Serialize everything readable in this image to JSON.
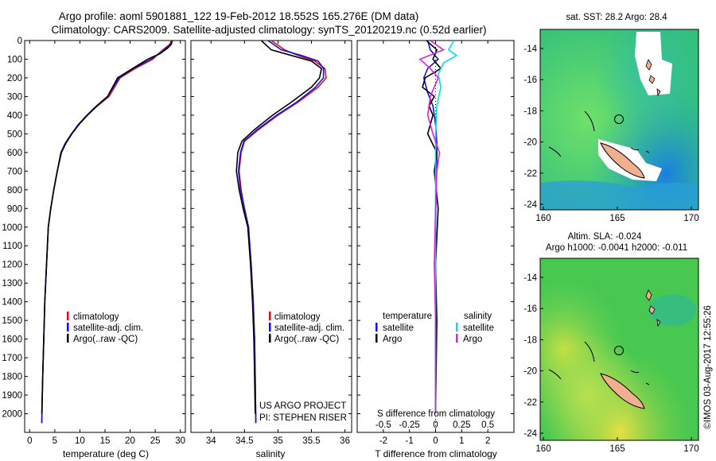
{
  "title": {
    "line1": "Argo profile: aoml 5901881_122 19-Feb-2012 18.552S 165.276E (DM data)",
    "line2": "Climatology: CARS2009. Satellite-adjusted climatology: synTS_20120219.nc (0.52d earlier)"
  },
  "colors": {
    "climatology": "#e01010",
    "satellite": "#1010e0",
    "argo": "#000000",
    "cyan": "#00e0e0",
    "magenta": "#e020e0"
  },
  "credits": {
    "project": "US ARGO PROJECT",
    "pi": "PI: STEPHEN RISER",
    "imos": "©IMOS 03-Aug-2017 12:55:26"
  },
  "legend1": {
    "climatology": "climatology",
    "satellite": "satellite-adj. clim.",
    "argo": "Argo(..raw -QC)"
  },
  "legend2": {
    "climatology": "climatology",
    "satellite": "satellite-adj. clim.",
    "argo": "Argo(..raw -QC)"
  },
  "legend3": {
    "t_head": "temperature",
    "s_head": "salinity",
    "t_sat": "satellite",
    "t_argo": "Argo",
    "s_sat": "satellite",
    "s_argo": "Argo"
  },
  "map_titles": {
    "sst": "sat. SST: 28.2 Argo: 28.4",
    "sla1": "Altim. SLA: -0.024",
    "sla2": "Argo h1000: -0.0041 h2000: -0.011"
  },
  "chart_data": [
    {
      "type": "line",
      "name": "temperature profile",
      "xlabel": "temperature (deg C)",
      "ylabel": "",
      "xlim": [
        -1,
        31
      ],
      "ylim": [
        2100,
        0
      ],
      "xticks": [
        0,
        5,
        10,
        15,
        20,
        25,
        30
      ],
      "yticks": [
        0,
        100,
        200,
        300,
        400,
        500,
        600,
        700,
        800,
        900,
        1000,
        1100,
        1200,
        1300,
        1400,
        1500,
        1600,
        1700,
        1800,
        1900,
        2000
      ],
      "series": [
        {
          "name": "climatology",
          "color": "#e01010",
          "x": [
            28.2,
            27.9,
            26.5,
            24.5,
            21,
            18,
            15.8,
            13.5,
            11.5,
            9.8,
            8.4,
            7.2,
            6.3,
            5.5,
            4.8,
            4.2,
            3.7,
            3.35,
            3,
            2.8,
            2.6,
            2.4
          ],
          "y": [
            0,
            20,
            50,
            100,
            150,
            200,
            300,
            350,
            400,
            450,
            500,
            550,
            600,
            700,
            800,
            900,
            1000,
            1200,
            1400,
            1600,
            1800,
            2050
          ]
        },
        {
          "name": "satellite-adj. clim.",
          "color": "#1010e0",
          "x": [
            28.4,
            28.1,
            26.8,
            24.2,
            20.6,
            17.8,
            15.5,
            13.3,
            11.4,
            9.7,
            8.3,
            7.1,
            6.2,
            5.5,
            4.8,
            4.2,
            3.7,
            3.35,
            3,
            2.8,
            2.6,
            2.4
          ],
          "y": [
            0,
            20,
            50,
            100,
            150,
            200,
            300,
            350,
            400,
            450,
            500,
            550,
            600,
            700,
            800,
            900,
            1000,
            1200,
            1400,
            1600,
            1800,
            2050
          ]
        },
        {
          "name": "Argo",
          "color": "#000000",
          "x": [
            28.4,
            28.2,
            27.5,
            26,
            23.5,
            20.5,
            17.5,
            15.5,
            13.4,
            11.5,
            9.8,
            8.4,
            7.2,
            6.3,
            5.5,
            4.8,
            4.2,
            3.7,
            3.35,
            3,
            2.8,
            2.6,
            2.4
          ],
          "y": [
            0,
            20,
            40,
            70,
            100,
            150,
            200,
            300,
            350,
            400,
            450,
            500,
            550,
            600,
            700,
            800,
            900,
            1000,
            1200,
            1400,
            1600,
            1800,
            2000
          ]
        }
      ]
    },
    {
      "type": "line",
      "name": "salinity profile",
      "xlabel": "salinity",
      "xlim": [
        33.7,
        36.1
      ],
      "ylim": [
        2100,
        0
      ],
      "xticks": [
        34,
        34.5,
        35,
        35.5,
        36
      ],
      "series": [
        {
          "name": "climatology",
          "color": "#e01010",
          "x": [
            34.9,
            35.1,
            35.3,
            35.55,
            35.7,
            35.72,
            35.6,
            35.3,
            35.0,
            34.7,
            34.5,
            34.45,
            34.42,
            34.45,
            34.5,
            34.56,
            34.6,
            34.63,
            34.65,
            34.66,
            34.67
          ],
          "y": [
            0,
            50,
            80,
            110,
            150,
            200,
            250,
            330,
            400,
            480,
            540,
            600,
            700,
            800,
            900,
            1000,
            1200,
            1400,
            1600,
            1800,
            2050
          ]
        },
        {
          "name": "satellite-adj. clim.",
          "color": "#1010e0",
          "x": [
            34.85,
            35.05,
            35.35,
            35.6,
            35.68,
            35.68,
            35.56,
            35.28,
            34.98,
            34.68,
            34.49,
            34.44,
            34.41,
            34.44,
            34.5,
            34.56,
            34.6,
            34.63,
            34.65,
            34.66,
            34.67
          ],
          "y": [
            0,
            50,
            80,
            110,
            150,
            200,
            250,
            330,
            400,
            480,
            540,
            600,
            700,
            800,
            900,
            1000,
            1200,
            1400,
            1600,
            1800,
            2050
          ]
        },
        {
          "name": "Argo",
          "color": "#000000",
          "x": [
            34.75,
            34.9,
            35.2,
            35.5,
            35.65,
            35.62,
            35.5,
            35.2,
            34.92,
            34.64,
            34.46,
            34.4,
            34.38,
            34.42,
            34.48,
            34.55,
            34.59,
            34.62,
            34.64,
            34.65,
            34.66
          ],
          "y": [
            0,
            50,
            80,
            110,
            150,
            200,
            250,
            330,
            400,
            480,
            540,
            600,
            700,
            800,
            900,
            1000,
            1200,
            1400,
            1600,
            1800,
            2000
          ]
        }
      ]
    },
    {
      "type": "line",
      "name": "difference from climatology",
      "xlabel": "T difference from climatology",
      "xlabel_top": "S difference from climatology",
      "xlim": [
        -3,
        3
      ],
      "ylim": [
        2100,
        0
      ],
      "xticks": [
        -2,
        -1,
        0,
        1,
        2
      ],
      "xtick_labels": [
        "-2",
        "-1",
        "0",
        "1",
        "2"
      ],
      "s_ticks": [
        -2,
        -1,
        0,
        1,
        2
      ],
      "s_tick_labels": [
        "-0.5",
        "-0.25",
        "0",
        "0.25",
        "0.5"
      ],
      "series": [
        {
          "name": "temperature satellite",
          "color": "#1010e0",
          "x": [
            -0.3,
            -0.2,
            0.1,
            -0.3,
            -0.45,
            -0.3,
            -0.1,
            0,
            0.05,
            0.05,
            0.02,
            0,
            0,
            0,
            0
          ],
          "y": [
            0,
            50,
            100,
            150,
            200,
            280,
            350,
            450,
            550,
            650,
            800,
            1000,
            1300,
            1600,
            2000
          ]
        },
        {
          "name": "temperature Argo",
          "color": "#000000",
          "x": [
            -0.35,
            0.05,
            -0.1,
            0.2,
            -0.4,
            -0.5,
            -0.05,
            -0.25,
            -0.1,
            -0.3,
            0.05,
            -0.05,
            0.1,
            0,
            0.05,
            0
          ],
          "y": [
            0,
            50,
            100,
            150,
            200,
            250,
            300,
            350,
            400,
            500,
            600,
            700,
            900,
            1200,
            1500,
            2000
          ]
        },
        {
          "name": "salinity satellite",
          "color": "#00e0e0",
          "x": [
            0.7,
            0.5,
            0.8,
            0.3,
            0.1,
            0.2,
            0.05,
            0,
            0,
            0,
            0,
            0,
            0,
            0
          ],
          "y": [
            0,
            50,
            80,
            120,
            180,
            250,
            350,
            500,
            700,
            900,
            1200,
            1500,
            1800,
            2000
          ]
        },
        {
          "name": "salinity Argo",
          "color": "#e020e0",
          "x": [
            -0.2,
            0.3,
            -0.6,
            -0.2,
            0.1,
            -0.2,
            -0.3,
            -0.1,
            0.15,
            0.05,
            0,
            -0.05,
            0,
            0
          ],
          "y": [
            0,
            50,
            100,
            150,
            200,
            300,
            400,
            500,
            600,
            700,
            900,
            1200,
            1500,
            2000
          ]
        }
      ]
    }
  ],
  "maps": [
    {
      "name": "SST map",
      "title": "sat. SST: 28.2 Argo: 28.4",
      "x_ticks": [
        "160",
        "165",
        "170"
      ],
      "y_ticks": [
        "-14",
        "-16",
        "-18",
        "-20",
        "-22",
        "-24"
      ]
    },
    {
      "name": "SLA map",
      "title": "Altim. SLA: -0.024",
      "x_ticks": [
        "160",
        "165",
        "170"
      ],
      "y_ticks": [
        "-14",
        "-16",
        "-18",
        "-20",
        "-22",
        "-24"
      ]
    }
  ]
}
